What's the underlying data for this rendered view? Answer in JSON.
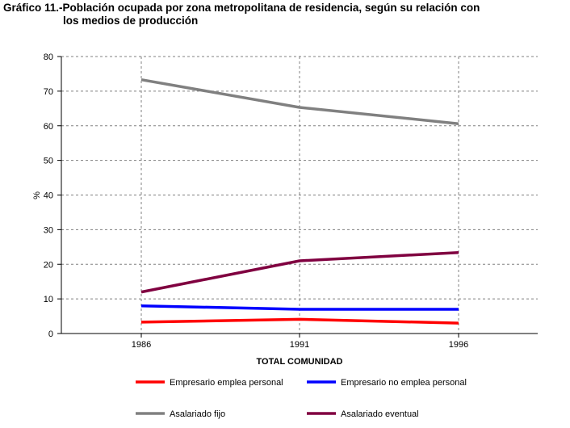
{
  "title_line1": "Gráfico 11.-Población ocupada por zona metropolitana de residencia, según su  relación con",
  "title_line2": "los medios de producción",
  "chart_data": {
    "type": "line",
    "title": "Gráfico 11.-Población ocupada por zona metropolitana de residencia, según su  relación con los medios de producción",
    "xlabel": "TOTAL COMUNIDAD",
    "ylabel": "%",
    "x": [
      "1986",
      "1991",
      "1996"
    ],
    "ylim": [
      0,
      80
    ],
    "yticks": [
      0,
      10,
      20,
      30,
      40,
      50,
      60,
      70,
      80
    ],
    "grid": true,
    "legend_position": "bottom",
    "series": [
      {
        "name": "Empresario emplea personal",
        "color": "#ff0000",
        "values": [
          3.3,
          4.1,
          3.0
        ]
      },
      {
        "name": "Empresario no emplea personal",
        "color": "#0000ff",
        "values": [
          8.0,
          7.0,
          7.0
        ]
      },
      {
        "name": "Asalariado fijo",
        "color": "#808080",
        "values": [
          73.3,
          65.3,
          60.6
        ]
      },
      {
        "name": "Asalariado eventual",
        "color": "#800040",
        "values": [
          12.0,
          21.0,
          23.4
        ]
      }
    ]
  }
}
